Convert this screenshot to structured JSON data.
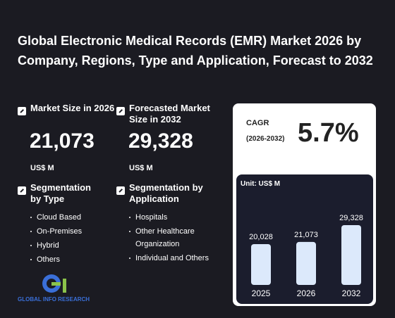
{
  "header": {
    "title": "Global Electronic Medical Records (EMR) Market 2026 by Company, Regions, Type and Application, Forecast to 2032"
  },
  "stats": [
    {
      "label": "Market Size in 2026",
      "value": "21,073",
      "unit": "US$ M"
    },
    {
      "label": "Forecasted Market Size in 2032",
      "value": "29,328",
      "unit": "US$ M"
    }
  ],
  "segments": [
    {
      "title": "Segmentation by Type",
      "items": [
        "Cloud Based",
        "On-Premises",
        "Hybrid",
        "Others"
      ]
    },
    {
      "title": "Segmentation by Application",
      "items": [
        "Hospitals",
        "Other Healthcare Organization",
        "Individual and Others"
      ]
    }
  ],
  "cagr": {
    "label": "CAGR",
    "period": "(2026-2032)",
    "value": "5.7%"
  },
  "logo": {
    "text": "GLOBAL INFO RESEARCH"
  },
  "chart_data": {
    "type": "bar",
    "subtitle": "Unit: US$ M",
    "categories": [
      "2025",
      "2026",
      "2032"
    ],
    "values": [
      20028,
      21073,
      29328
    ],
    "value_labels": [
      "20,028",
      "21,073",
      "29,328"
    ],
    "color": "#dce9fb"
  }
}
